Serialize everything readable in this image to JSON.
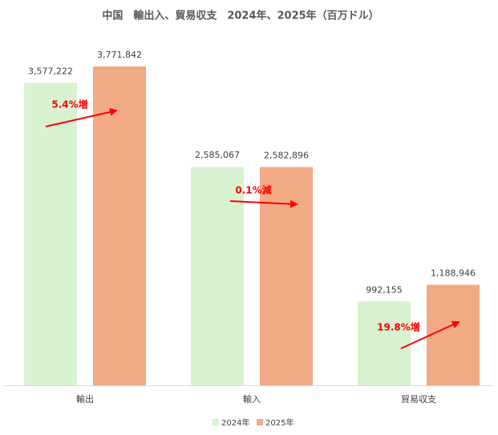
{
  "chart_data": {
    "type": "bar",
    "title": "中国　輸出入、貿易収支　2024年、2025年（百万ドル）",
    "categories": [
      "輸出",
      "輸入",
      "貿易収支"
    ],
    "series": [
      {
        "name": "2024年",
        "color": "#d9f2d0",
        "values": [
          3577222,
          2585067,
          992155
        ],
        "value_labels": [
          "3,577,222",
          "2,585,067",
          "992,155"
        ]
      },
      {
        "name": "2025年",
        "color": "#f2aa84",
        "values": [
          3771842,
          2582896,
          1188946
        ],
        "value_labels": [
          "3,771,842",
          "2,582,896",
          "1,188,946"
        ]
      }
    ],
    "annotations": [
      "5.4%増",
      "0.1%減",
      "19.8%増"
    ],
    "legend": "bottom"
  }
}
